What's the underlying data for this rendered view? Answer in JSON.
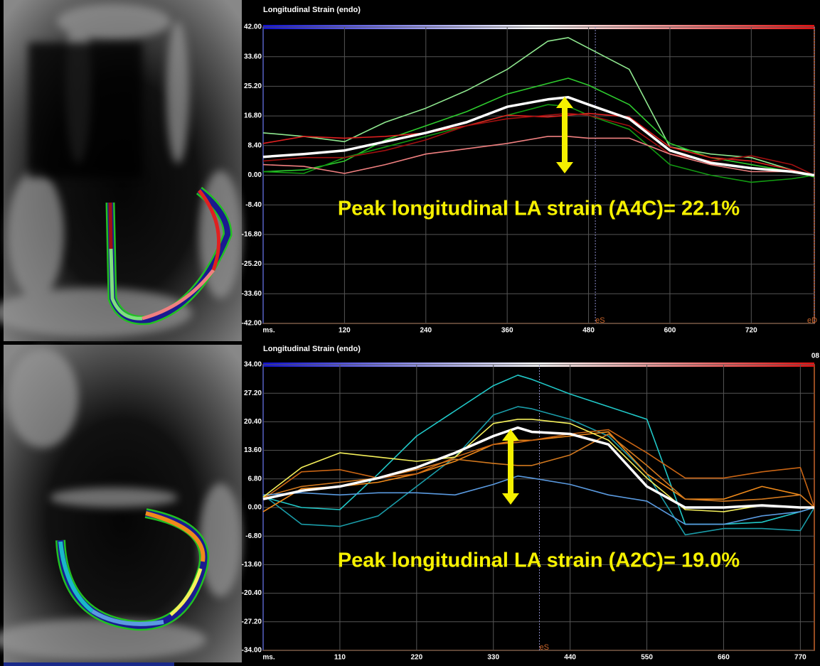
{
  "chart_data": [
    {
      "type": "line",
      "title": "Longitudinal Strain (endo)",
      "annotation": "Peak longitudinal LA strain (A4C)= 22.1%",
      "x": [
        0,
        60,
        120,
        180,
        240,
        300,
        360,
        420,
        450,
        480,
        540,
        600,
        660,
        720,
        780,
        813
      ],
      "series": [
        {
          "color": "#8fe88f",
          "values": [
            12,
            11,
            9.5,
            15,
            19,
            24,
            30,
            38,
            39,
            36,
            30,
            8,
            6,
            5,
            1.5,
            0
          ]
        },
        {
          "color": "#2ecc2e",
          "values": [
            1,
            1.5,
            4,
            10,
            14,
            18,
            23,
            26,
            27.5,
            25.5,
            20,
            9,
            5,
            3,
            1,
            -0.5
          ]
        },
        {
          "color": "#129a12",
          "values": [
            1,
            0.5,
            5,
            8,
            11,
            14,
            17,
            20,
            19.5,
            17,
            13,
            3,
            0,
            -2,
            -1,
            0
          ]
        },
        {
          "color": "#e02020",
          "values": [
            9,
            11,
            10.5,
            11,
            12,
            14,
            17,
            16.5,
            17,
            17.5,
            16.5,
            8,
            5,
            4,
            1.5,
            0
          ]
        },
        {
          "color": "#a01010",
          "values": [
            4,
            5,
            5,
            7,
            10,
            14,
            16,
            17,
            17.5,
            17,
            14,
            6,
            4,
            5.5,
            3,
            0
          ]
        },
        {
          "color": "#f08080",
          "values": [
            3,
            2.5,
            0.5,
            3,
            6,
            7.5,
            9,
            11,
            11,
            10.5,
            10.5,
            6,
            3,
            1,
            1,
            0
          ]
        },
        {
          "color": "#ffffff",
          "values": [
            5.2,
            6,
            7,
            9.5,
            12,
            15,
            19.4,
            21.5,
            22.1,
            20,
            16,
            7,
            3.5,
            2,
            1,
            0
          ]
        }
      ],
      "markers": [
        {
          "label": "eS",
          "x": 490
        },
        {
          "label": "eD",
          "x": 813
        }
      ],
      "xlim": [
        0,
        813
      ],
      "ylim": [
        -42,
        42
      ],
      "xticks": [
        {
          "value": 0,
          "label": "ms."
        },
        120,
        240,
        360,
        480,
        600,
        720
      ],
      "yticks": [
        {
          "value": 42,
          "label": "42.00"
        },
        {
          "value": 33.6,
          "label": "33.60"
        },
        {
          "value": 25.2,
          "label": "25.20"
        },
        {
          "value": 16.8,
          "label": "16.80"
        },
        {
          "value": 8.4,
          "label": "8.40"
        },
        {
          "value": 0,
          "label": "0.00"
        },
        {
          "value": -8.4,
          "label": "-8.40"
        },
        {
          "value": -16.8,
          "label": "-16.80"
        },
        {
          "value": -25.2,
          "label": "-25.20"
        },
        {
          "value": -33.6,
          "label": "-33.60"
        },
        {
          "value": -42,
          "label": "-42.00"
        }
      ],
      "grid": true
    },
    {
      "type": "line",
      "title": "Longitudinal Strain (endo)",
      "annotation": "Peak longitudinal LA strain (A2C)= 19.0%",
      "corner_label": "08",
      "x": [
        0,
        55,
        110,
        165,
        220,
        275,
        330,
        365,
        385,
        440,
        495,
        550,
        605,
        660,
        715,
        770,
        790
      ],
      "series": [
        {
          "color": "#20c8c8",
          "values": [
            2.5,
            0,
            -0.5,
            8,
            17,
            23,
            29,
            31.5,
            30.5,
            27,
            24,
            21,
            -4,
            -4,
            -3.5,
            -1,
            0
          ]
        },
        {
          "color": "#1a9ca8",
          "values": [
            3,
            -4,
            -4.5,
            -2,
            5,
            12,
            22,
            24,
            23.5,
            21,
            17,
            8,
            -6.5,
            -5,
            -5,
            -5.5,
            0
          ]
        },
        {
          "color": "#f08a1a",
          "values": [
            -1,
            4.5,
            5,
            6,
            8,
            11,
            15,
            16,
            16,
            17,
            18,
            8,
            2,
            2,
            5,
            3,
            0
          ]
        },
        {
          "color": "#c86414",
          "values": [
            2,
            8.5,
            9,
            7,
            8,
            12,
            15,
            15.5,
            16,
            17.5,
            18.5,
            13,
            7,
            7,
            8.5,
            9.5,
            0
          ]
        },
        {
          "color": "#d2781e",
          "values": [
            2.5,
            5,
            6,
            7,
            9,
            11.5,
            10.5,
            10,
            10,
            12.5,
            17.5,
            10,
            2,
            1.5,
            2,
            3,
            0
          ]
        },
        {
          "color": "#5a9ae0",
          "values": [
            3,
            3.5,
            3,
            3.5,
            3.5,
            3,
            5.5,
            7.5,
            7,
            5.5,
            3,
            1.5,
            -4,
            -4,
            -2,
            -1,
            0
          ]
        },
        {
          "color": "#f5f05a",
          "values": [
            2.5,
            9.5,
            13,
            12,
            11,
            12,
            20,
            21,
            21,
            20,
            16,
            7,
            -0.5,
            -1,
            0.5,
            0,
            0
          ]
        },
        {
          "color": "#ffffff",
          "values": [
            2,
            4,
            5,
            7,
            9.5,
            13,
            17,
            19,
            18,
            17.5,
            15,
            5,
            0,
            0,
            0.5,
            0,
            0
          ]
        }
      ],
      "markers": [
        {
          "label": "eS",
          "x": 396
        }
      ],
      "xlim": [
        0,
        790
      ],
      "ylim": [
        -34,
        34
      ],
      "xticks": [
        {
          "value": 0,
          "label": "ms."
        },
        110,
        220,
        330,
        440,
        550,
        660,
        770
      ],
      "yticks": [
        {
          "value": 34,
          "label": "34.00"
        },
        {
          "value": 27.2,
          "label": "27.20"
        },
        {
          "value": 20.4,
          "label": "20.40"
        },
        {
          "value": 13.6,
          "label": "13.60"
        },
        {
          "value": 6.8,
          "label": "6.80"
        },
        {
          "value": 0,
          "label": "0.00"
        },
        {
          "value": -6.8,
          "label": "-6.80"
        },
        {
          "value": -13.6,
          "label": "-13.60"
        },
        {
          "value": -20.4,
          "label": "-20.40"
        },
        {
          "value": -27.2,
          "label": "-27.20"
        },
        {
          "value": -34,
          "label": "-34.00"
        }
      ],
      "grid": true
    }
  ]
}
